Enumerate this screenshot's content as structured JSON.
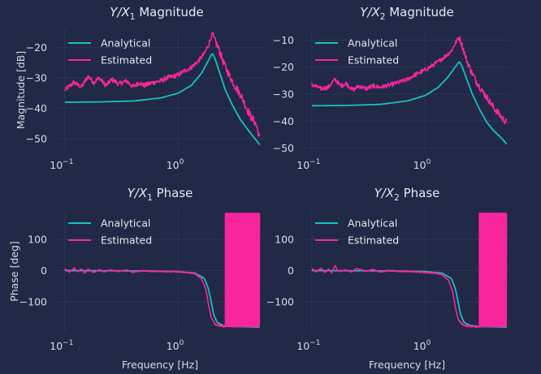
{
  "chart_data": [
    {
      "type": "line",
      "title": "Y/X1 Magnitude",
      "title_parts": {
        "main": "Y/X",
        "sub": "1",
        "rest": " Magnitude"
      },
      "xlabel": "",
      "ylabel": "Magnitude [dB]",
      "xscale": "log",
      "xlim": [
        0.085,
        5.6
      ],
      "ylim": [
        -54,
        -14
      ],
      "xticks": [
        {
          "value": 0.1,
          "base": "10",
          "exp": "−1"
        },
        {
          "value": 1,
          "base": "10",
          "exp": "0"
        }
      ],
      "yticks": [
        {
          "value": -20,
          "label": "−20"
        },
        {
          "value": -30,
          "label": "−30"
        },
        {
          "value": -40,
          "label": "−40"
        },
        {
          "value": -50,
          "label": "−50"
        }
      ],
      "grid": true,
      "legend_position": "upper-left",
      "series": [
        {
          "name": "Analytical",
          "color": "#18c0c4",
          "points": [
            [
              0.1,
              -38
            ],
            [
              0.2,
              -37.9
            ],
            [
              0.4,
              -37.6
            ],
            [
              0.7,
              -36.6
            ],
            [
              1.0,
              -35.0
            ],
            [
              1.3,
              -32.5
            ],
            [
              1.6,
              -28.5
            ],
            [
              1.8,
              -25.0
            ],
            [
              1.95,
              -22.5
            ],
            [
              2.0,
              -22
            ],
            [
              2.1,
              -23.5
            ],
            [
              2.3,
              -28
            ],
            [
              2.6,
              -34
            ],
            [
              3.0,
              -39
            ],
            [
              3.5,
              -43.5
            ],
            [
              4.0,
              -46.5
            ],
            [
              4.5,
              -49
            ],
            [
              5.0,
              -51
            ],
            [
              5.2,
              -52
            ]
          ]
        },
        {
          "name": "Estimated",
          "color": "#f8259c",
          "points": [
            [
              0.1,
              -34
            ],
            [
              0.12,
              -31.5
            ],
            [
              0.14,
              -33
            ],
            [
              0.16,
              -29.5
            ],
            [
              0.18,
              -31.5
            ],
            [
              0.2,
              -30
            ],
            [
              0.23,
              -32.5
            ],
            [
              0.26,
              -30.5
            ],
            [
              0.3,
              -32
            ],
            [
              0.35,
              -31
            ],
            [
              0.4,
              -33
            ],
            [
              0.45,
              -31.5
            ],
            [
              0.5,
              -32.5
            ],
            [
              0.6,
              -31.5
            ],
            [
              0.7,
              -31
            ],
            [
              0.8,
              -30
            ],
            [
              0.9,
              -29.5
            ],
            [
              1.0,
              -29
            ],
            [
              1.1,
              -28
            ],
            [
              1.3,
              -26.5
            ],
            [
              1.5,
              -24.5
            ],
            [
              1.7,
              -22
            ],
            [
              1.85,
              -19
            ],
            [
              1.95,
              -16.5
            ],
            [
              2.0,
              -15.5
            ],
            [
              2.05,
              -17
            ],
            [
              2.15,
              -18.5
            ],
            [
              2.3,
              -21
            ],
            [
              2.5,
              -25
            ],
            [
              2.8,
              -29
            ],
            [
              3.2,
              -33
            ],
            [
              3.6,
              -36
            ],
            [
              4.0,
              -40
            ],
            [
              4.4,
              -43
            ],
            [
              4.8,
              -45
            ],
            [
              5.0,
              -47
            ],
            [
              5.2,
              -50
            ]
          ]
        }
      ]
    },
    {
      "type": "line",
      "title": "Y/X2 Magnitude",
      "title_parts": {
        "main": "Y/X",
        "sub": "2",
        "rest": " Magnitude"
      },
      "xlabel": "",
      "ylabel": "",
      "xscale": "log",
      "xlim": [
        0.085,
        5.6
      ],
      "ylim": [
        -51,
        -6
      ],
      "xticks": [
        {
          "value": 0.1,
          "base": "10",
          "exp": "−1"
        },
        {
          "value": 1,
          "base": "10",
          "exp": "0"
        }
      ],
      "yticks": [
        {
          "value": -10,
          "label": "−10"
        },
        {
          "value": -20,
          "label": "−20"
        },
        {
          "value": -30,
          "label": "−30"
        },
        {
          "value": -40,
          "label": "−40"
        },
        {
          "value": -50,
          "label": "−50"
        }
      ],
      "grid": true,
      "legend_position": "upper-left",
      "series": [
        {
          "name": "Analytical",
          "color": "#18c0c4",
          "points": [
            [
              0.1,
              -34.3
            ],
            [
              0.2,
              -34.2
            ],
            [
              0.4,
              -33.8
            ],
            [
              0.7,
              -32.5
            ],
            [
              1.0,
              -30.5
            ],
            [
              1.3,
              -27.5
            ],
            [
              1.6,
              -23.5
            ],
            [
              1.8,
              -20.5
            ],
            [
              1.95,
              -18.5
            ],
            [
              2.0,
              -18
            ],
            [
              2.1,
              -19.5
            ],
            [
              2.3,
              -24
            ],
            [
              2.6,
              -30
            ],
            [
              3.0,
              -35.5
            ],
            [
              3.5,
              -40.5
            ],
            [
              4.0,
              -43.5
            ],
            [
              4.5,
              -45.5
            ],
            [
              5.0,
              -47.5
            ],
            [
              5.2,
              -48.5
            ]
          ]
        },
        {
          "name": "Estimated",
          "color": "#f8259c",
          "points": [
            [
              0.1,
              -26.5
            ],
            [
              0.12,
              -28
            ],
            [
              0.14,
              -27.5
            ],
            [
              0.16,
              -24.5
            ],
            [
              0.18,
              -27
            ],
            [
              0.2,
              -26
            ],
            [
              0.23,
              -28.5
            ],
            [
              0.26,
              -27
            ],
            [
              0.3,
              -28
            ],
            [
              0.35,
              -27
            ],
            [
              0.4,
              -27.5
            ],
            [
              0.5,
              -26.5
            ],
            [
              0.6,
              -25.5
            ],
            [
              0.7,
              -24.5
            ],
            [
              0.8,
              -23
            ],
            [
              0.9,
              -22
            ],
            [
              1.0,
              -21
            ],
            [
              1.1,
              -20
            ],
            [
              1.3,
              -18
            ],
            [
              1.5,
              -16
            ],
            [
              1.7,
              -14
            ],
            [
              1.85,
              -11
            ],
            [
              1.95,
              -9.5
            ],
            [
              2.0,
              -9
            ],
            [
              2.05,
              -10.5
            ],
            [
              2.15,
              -13
            ],
            [
              2.3,
              -17
            ],
            [
              2.5,
              -21
            ],
            [
              2.8,
              -25
            ],
            [
              3.2,
              -29
            ],
            [
              3.6,
              -32
            ],
            [
              4.0,
              -35
            ],
            [
              4.4,
              -37
            ],
            [
              4.8,
              -39
            ],
            [
              5.2,
              -40.5
            ]
          ]
        }
      ]
    },
    {
      "type": "line",
      "title": "Y/X1 Phase",
      "title_parts": {
        "main": "Y/X",
        "sub": "1",
        "rest": " Phase"
      },
      "xlabel": "Frequency [Hz]",
      "ylabel": "Phase [deg]",
      "xscale": "log",
      "xlim": [
        0.085,
        5.6
      ],
      "ylim": [
        -195,
        190
      ],
      "xticks": [
        {
          "value": 0.1,
          "base": "10",
          "exp": "−1"
        },
        {
          "value": 1,
          "base": "10",
          "exp": "0"
        }
      ],
      "yticks": [
        {
          "value": 100,
          "label": "100"
        },
        {
          "value": 0,
          "label": "0"
        },
        {
          "value": -100,
          "label": "−100"
        }
      ],
      "grid": true,
      "legend_position": "upper-left",
      "wrap_region_hz": [
        2.6,
        5.2
      ],
      "series": [
        {
          "name": "Analytical",
          "color": "#18c0c4",
          "points": [
            [
              0.1,
              0
            ],
            [
              0.5,
              -1
            ],
            [
              1.0,
              -3
            ],
            [
              1.4,
              -8
            ],
            [
              1.7,
              -25
            ],
            [
              1.85,
              -60
            ],
            [
              1.95,
              -100
            ],
            [
              2.05,
              -140
            ],
            [
              2.2,
              -165
            ],
            [
              2.5,
              -175
            ],
            [
              3.0,
              -178
            ],
            [
              4.0,
              -179
            ],
            [
              5.2,
              -180
            ]
          ]
        },
        {
          "name": "Estimated",
          "color": "#f8259c",
          "points": [
            [
              0.1,
              5
            ],
            [
              0.11,
              -5
            ],
            [
              0.12,
              8
            ],
            [
              0.13,
              -3
            ],
            [
              0.14,
              6
            ],
            [
              0.15,
              -8
            ],
            [
              0.16,
              4
            ],
            [
              0.18,
              -6
            ],
            [
              0.2,
              3
            ],
            [
              0.22,
              -4
            ],
            [
              0.25,
              2
            ],
            [
              0.3,
              -3
            ],
            [
              0.35,
              2
            ],
            [
              0.4,
              -5
            ],
            [
              0.5,
              0
            ],
            [
              0.6,
              -3
            ],
            [
              0.7,
              -2
            ],
            [
              0.8,
              -4
            ],
            [
              0.9,
              -3
            ],
            [
              1.0,
              -4
            ],
            [
              1.2,
              -6
            ],
            [
              1.4,
              -10
            ],
            [
              1.6,
              -25
            ],
            [
              1.75,
              -60
            ],
            [
              1.85,
              -110
            ],
            [
              1.95,
              -150
            ],
            [
              2.1,
              -170
            ],
            [
              2.3,
              -175
            ],
            [
              2.5,
              -177
            ]
          ]
        }
      ]
    },
    {
      "type": "line",
      "title": "Y/X2 Phase",
      "title_parts": {
        "main": "Y/X",
        "sub": "2",
        "rest": " Phase"
      },
      "xlabel": "Frequency [Hz]",
      "ylabel": "",
      "xscale": "log",
      "xlim": [
        0.085,
        5.6
      ],
      "ylim": [
        -195,
        190
      ],
      "xticks": [
        {
          "value": 0.1,
          "base": "10",
          "exp": "−1"
        },
        {
          "value": 1,
          "base": "10",
          "exp": "0"
        }
      ],
      "yticks": [
        {
          "value": 100,
          "label": "100"
        },
        {
          "value": 0,
          "label": "0"
        },
        {
          "value": -100,
          "label": "−100"
        }
      ],
      "grid": true,
      "legend_position": "upper-left",
      "wrap_region_hz": [
        3.0,
        5.2
      ],
      "series": [
        {
          "name": "Analytical",
          "color": "#18c0c4",
          "points": [
            [
              0.1,
              0
            ],
            [
              0.5,
              -1
            ],
            [
              1.0,
              -3
            ],
            [
              1.4,
              -8
            ],
            [
              1.7,
              -25
            ],
            [
              1.85,
              -60
            ],
            [
              1.95,
              -100
            ],
            [
              2.05,
              -140
            ],
            [
              2.2,
              -165
            ],
            [
              2.5,
              -175
            ],
            [
              3.0,
              -178
            ],
            [
              4.0,
              -179
            ],
            [
              5.2,
              -180
            ]
          ]
        },
        {
          "name": "Estimated",
          "color": "#f8259c",
          "points": [
            [
              0.1,
              6
            ],
            [
              0.11,
              -4
            ],
            [
              0.12,
              7
            ],
            [
              0.13,
              -5
            ],
            [
              0.14,
              4
            ],
            [
              0.15,
              -6
            ],
            [
              0.16,
              16
            ],
            [
              0.17,
              -3
            ],
            [
              0.2,
              2
            ],
            [
              0.22,
              -4
            ],
            [
              0.25,
              6
            ],
            [
              0.3,
              -2
            ],
            [
              0.35,
              3
            ],
            [
              0.4,
              -4
            ],
            [
              0.5,
              1
            ],
            [
              0.6,
              -3
            ],
            [
              0.7,
              -2
            ],
            [
              0.8,
              -4
            ],
            [
              0.9,
              -5
            ],
            [
              1.0,
              -6
            ],
            [
              1.2,
              -8
            ],
            [
              1.4,
              -12
            ],
            [
              1.6,
              -30
            ],
            [
              1.75,
              -70
            ],
            [
              1.85,
              -120
            ],
            [
              1.95,
              -155
            ],
            [
              2.1,
              -170
            ],
            [
              2.3,
              -176
            ],
            [
              2.6,
              -178
            ],
            [
              3.0,
              -178
            ]
          ]
        }
      ]
    }
  ]
}
